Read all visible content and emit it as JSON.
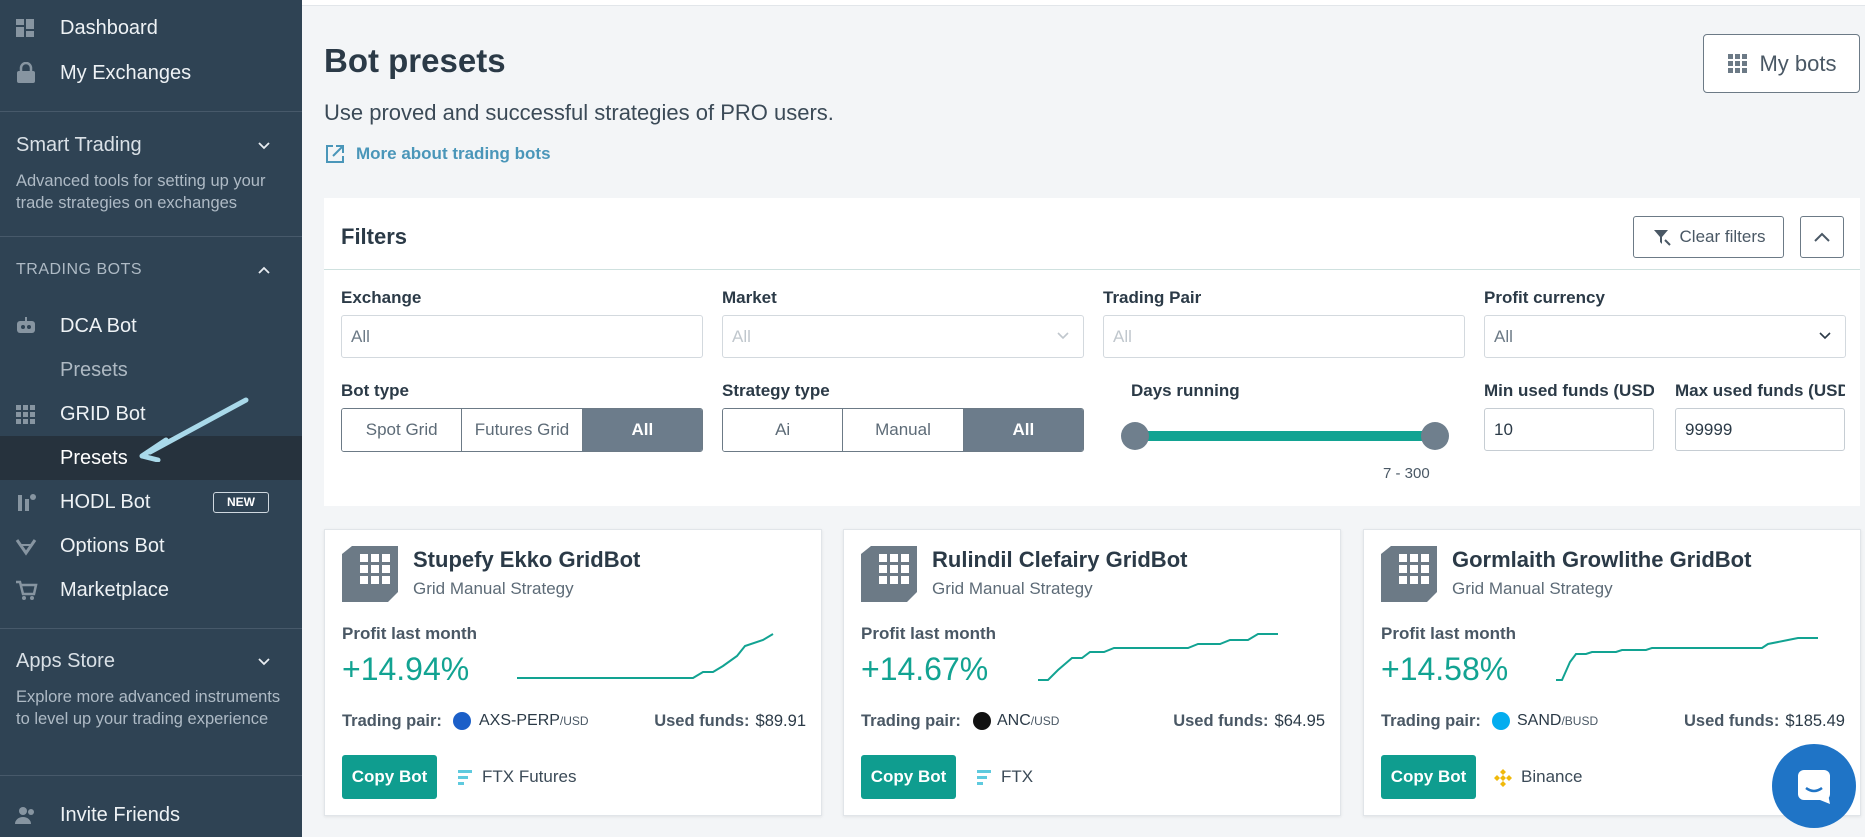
{
  "sidebar": {
    "dashboard": "Dashboard",
    "my_exchanges": "My Exchanges",
    "smart_trading": {
      "title": "Smart Trading",
      "desc": "Advanced tools for setting up your trade strategies on exchanges"
    },
    "trading_bots_header": "TRADING BOTS",
    "dca_bot": "DCA Bot",
    "dca_presets": "Presets",
    "grid_bot": "GRID Bot",
    "grid_presets": "Presets",
    "hodl_bot": "HODL Bot",
    "new_badge": "NEW",
    "options_bot": "Options Bot",
    "marketplace": "Marketplace",
    "apps_store": {
      "title": "Apps Store",
      "desc": "Explore more advanced instruments to level up your trading experience"
    },
    "invite_friends": "Invite Friends"
  },
  "header": {
    "title": "Bot presets",
    "subtitle": "Use proved and successful strategies of PRO users.",
    "more_link": "More about trading bots",
    "my_bots": "My bots"
  },
  "filters": {
    "title": "Filters",
    "clear": "Clear filters",
    "exchange": {
      "label": "Exchange",
      "placeholder": "All"
    },
    "market": {
      "label": "Market",
      "value": "All"
    },
    "trading_pair": {
      "label": "Trading Pair",
      "placeholder": "All"
    },
    "profit_currency": {
      "label": "Profit currency",
      "value": "All"
    },
    "bot_type": {
      "label": "Bot type",
      "options": [
        "Spot Grid",
        "Futures Grid",
        "All"
      ],
      "selected": "All"
    },
    "strategy_type": {
      "label": "Strategy type",
      "options": [
        "Ai",
        "Manual",
        "All"
      ],
      "selected": "All"
    },
    "days_running": {
      "label": "Days running",
      "range": "7 - 300",
      "min": 7,
      "max": 300
    },
    "min_funds": {
      "label": "Min used funds (USD)",
      "value": "10"
    },
    "max_funds": {
      "label": "Max used funds (USD)",
      "value": "99999"
    }
  },
  "cards": [
    {
      "title": "Stupefy Ekko GridBot",
      "strategy": "Grid Manual Strategy",
      "profit_label": "Profit last month",
      "profit": "+14.94%",
      "pair_label": "Trading pair:",
      "pair": "AXS-PERP",
      "quote": "/USD",
      "funds_label": "Used funds:",
      "funds": "$89.91",
      "copy": "Copy Bot",
      "exchange": "FTX Futures",
      "coin_color": "#1b5fc8",
      "exchange_color": "#5fcade"
    },
    {
      "title": "Rulindil Clefairy GridBot",
      "strategy": "Grid Manual Strategy",
      "profit_label": "Profit last month",
      "profit": "+14.67%",
      "pair_label": "Trading pair:",
      "pair": "ANC",
      "quote": "/USD",
      "funds_label": "Used funds:",
      "funds": "$64.95",
      "copy": "Copy Bot",
      "exchange": "FTX",
      "coin_color": "#111111",
      "exchange_color": "#5fcade"
    },
    {
      "title": "Gormlaith Growlithe GridBot",
      "strategy": "Grid Manual Strategy",
      "profit_label": "Profit last month",
      "profit": "+14.58%",
      "pair_label": "Trading pair:",
      "pair": "SAND",
      "quote": "/BUSD",
      "funds_label": "Used funds:",
      "funds": "$185.49",
      "copy": "Copy Bot",
      "exchange": "Binance",
      "coin_color": "#04adef",
      "exchange_color": "#f0b90b"
    }
  ],
  "colors": {
    "sidebar": "#2f4354",
    "accent": "#12a392",
    "link": "#4a96b9"
  }
}
